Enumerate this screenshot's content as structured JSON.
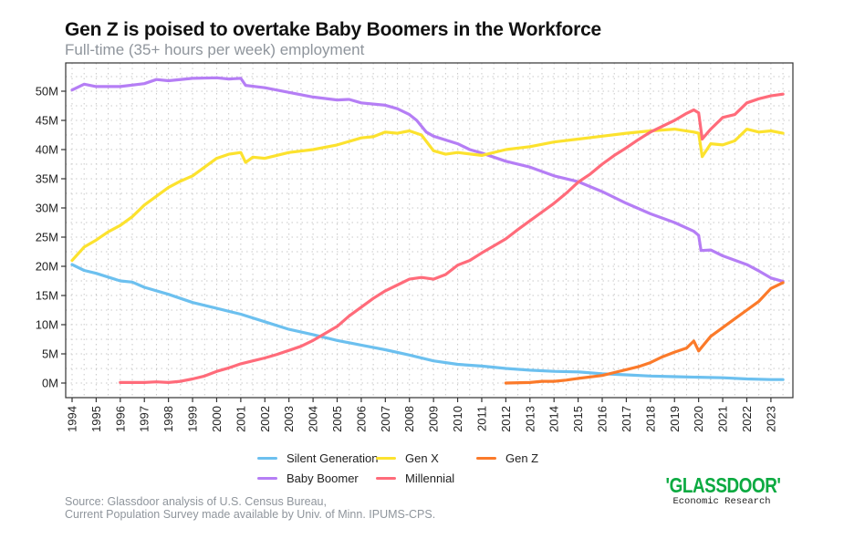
{
  "chart_data": {
    "type": "line",
    "title": "Gen Z is poised to overtake Baby Boomers in the Workforce",
    "subtitle": "Full-time (35+ hours per week) employment",
    "xlabel": "",
    "ylabel": "",
    "xlim": [
      1993.7,
      2023.9
    ],
    "ylim": [
      -2.5,
      52.5
    ],
    "grid": true,
    "legend_position": "bottom",
    "x_ticks": [
      "1994",
      "1995",
      "1996",
      "1997",
      "1998",
      "1999",
      "2000",
      "2001",
      "2002",
      "2003",
      "2004",
      "2005",
      "2006",
      "2007",
      "2008",
      "2009",
      "2010",
      "2011",
      "2012",
      "2013",
      "2014",
      "2015",
      "2016",
      "2017",
      "2018",
      "2019",
      "2020",
      "2021",
      "2022",
      "2023"
    ],
    "y_ticks": [
      {
        "value": 0,
        "label": "0M"
      },
      {
        "value": 5,
        "label": "5M"
      },
      {
        "value": 10,
        "label": "10M"
      },
      {
        "value": 15,
        "label": "15M"
      },
      {
        "value": 20,
        "label": "20M"
      },
      {
        "value": 25,
        "label": "25M"
      },
      {
        "value": 30,
        "label": "30M"
      },
      {
        "value": 35,
        "label": "35M"
      },
      {
        "value": 40,
        "label": "40M"
      },
      {
        "value": 45,
        "label": "45M"
      },
      {
        "value": 50,
        "label": "50M"
      }
    ],
    "units": "millions of workers",
    "series": [
      {
        "name": "Silent Generation",
        "color": "#6cc0ef",
        "x": [
          1994,
          1994.5,
          1995,
          1996,
          1996.5,
          1997,
          1998,
          1999,
          2000,
          2001,
          2002,
          2003,
          2004,
          2005,
          2006,
          2007,
          2008,
          2009,
          2010,
          2011,
          2012,
          2013,
          2014,
          2015,
          2016,
          2017,
          2018,
          2019,
          2020,
          2021,
          2022,
          2023,
          2023.5
        ],
        "y": [
          20.3,
          19.3,
          18.8,
          17.5,
          17.3,
          16.4,
          15.2,
          13.8,
          12.8,
          11.8,
          10.5,
          9.2,
          8.3,
          7.3,
          6.5,
          5.7,
          4.8,
          3.8,
          3.2,
          2.9,
          2.5,
          2.2,
          2.0,
          1.9,
          1.6,
          1.4,
          1.2,
          1.1,
          1.0,
          0.9,
          0.7,
          0.6,
          0.6
        ]
      },
      {
        "name": "Baby Boomer",
        "color": "#b57ef5",
        "x": [
          1994,
          1994.5,
          1995,
          1996,
          1997,
          1997.5,
          1998,
          1999,
          2000,
          2000.5,
          2001,
          2001.2,
          2002,
          2003,
          2004,
          2005,
          2005.5,
          2006,
          2007,
          2007.5,
          2008,
          2008.3,
          2008.7,
          2009,
          2010,
          2010.5,
          2011,
          2012,
          2013,
          2014,
          2015,
          2016,
          2017,
          2018,
          2019,
          2019.8,
          2020,
          2020.1,
          2020.5,
          2021,
          2022,
          2022.5,
          2023,
          2023.5
        ],
        "y": [
          50.2,
          51.2,
          50.8,
          50.8,
          51.3,
          52.0,
          51.8,
          52.2,
          52.3,
          52.1,
          52.2,
          51.0,
          50.6,
          49.8,
          49.0,
          48.5,
          48.6,
          48.0,
          47.6,
          47.0,
          46.0,
          45.0,
          43.0,
          42.3,
          41.0,
          40.0,
          39.4,
          38.0,
          37.0,
          35.5,
          34.5,
          32.8,
          30.8,
          29.0,
          27.5,
          26.0,
          25.3,
          22.7,
          22.8,
          21.8,
          20.3,
          19.2,
          18.0,
          17.4
        ]
      },
      {
        "name": "Gen X",
        "color": "#fce22e",
        "x": [
          1994,
          1994.5,
          1995,
          1995.5,
          1996,
          1996.5,
          1997,
          1997.5,
          1998,
          1998.5,
          1999,
          1999.5,
          2000,
          2000.5,
          2001,
          2001.2,
          2001.5,
          2002,
          2003,
          2004,
          2005,
          2006,
          2006.5,
          2007,
          2007.5,
          2008,
          2008.5,
          2009,
          2009.5,
          2010,
          2011,
          2012,
          2013,
          2014,
          2015,
          2016,
          2017,
          2018,
          2019,
          2019.8,
          2020,
          2020.15,
          2020.5,
          2021,
          2021.5,
          2022,
          2022.5,
          2023,
          2023.5
        ],
        "y": [
          21.0,
          23.3,
          24.5,
          25.9,
          27.0,
          28.5,
          30.5,
          32.0,
          33.5,
          34.6,
          35.5,
          37.0,
          38.5,
          39.2,
          39.5,
          37.8,
          38.7,
          38.5,
          39.5,
          40.0,
          40.8,
          42.0,
          42.2,
          43.0,
          42.8,
          43.2,
          42.5,
          39.8,
          39.2,
          39.5,
          39.0,
          40.0,
          40.5,
          41.3,
          41.8,
          42.3,
          42.8,
          43.2,
          43.5,
          43.0,
          42.8,
          38.8,
          41.0,
          40.8,
          41.5,
          43.5,
          43.0,
          43.2,
          42.8
        ]
      },
      {
        "name": "Millennial",
        "color": "#ff6b7a",
        "x": [
          1996,
          1996.5,
          1997,
          1997.5,
          1998,
          1998.5,
          1999,
          1999.5,
          2000,
          2000.5,
          2001,
          2001.5,
          2002,
          2002.5,
          2003,
          2003.5,
          2004,
          2004.5,
          2005,
          2005.5,
          2006,
          2006.5,
          2007,
          2007.5,
          2008,
          2008.5,
          2009,
          2009.5,
          2010,
          2010.5,
          2011,
          2011.5,
          2012,
          2012.5,
          2013,
          2013.5,
          2014,
          2014.5,
          2015,
          2015.5,
          2016,
          2016.5,
          2017,
          2017.5,
          2018,
          2018.5,
          2019,
          2019.5,
          2019.8,
          2020,
          2020.15,
          2020.5,
          2021,
          2021.5,
          2022,
          2022.5,
          2023,
          2023.5
        ],
        "y": [
          0.1,
          0.1,
          0.1,
          0.2,
          0.1,
          0.3,
          0.7,
          1.2,
          2.0,
          2.6,
          3.3,
          3.8,
          4.3,
          4.9,
          5.6,
          6.3,
          7.3,
          8.5,
          9.7,
          11.5,
          13.0,
          14.5,
          15.8,
          16.8,
          17.8,
          18.1,
          17.8,
          18.6,
          20.2,
          21.0,
          22.3,
          23.5,
          24.7,
          26.3,
          27.8,
          29.3,
          30.8,
          32.5,
          34.4,
          35.8,
          37.5,
          39.0,
          40.3,
          41.7,
          43.0,
          44.0,
          45.0,
          46.2,
          46.8,
          46.3,
          41.8,
          43.5,
          45.5,
          46.0,
          48.0,
          48.7,
          49.2,
          49.5
        ]
      },
      {
        "name": "Gen Z",
        "color": "#fb7a2a",
        "x": [
          2012,
          2013,
          2013.5,
          2014,
          2014.5,
          2015,
          2016,
          2016.5,
          2017,
          2017.5,
          2018,
          2018.5,
          2019,
          2019.5,
          2019.8,
          2020,
          2020.5,
          2021,
          2021.5,
          2022,
          2022.5,
          2023,
          2023.5
        ],
        "y": [
          0.0,
          0.1,
          0.3,
          0.3,
          0.5,
          0.8,
          1.3,
          1.8,
          2.3,
          2.8,
          3.5,
          4.5,
          5.3,
          6.0,
          7.2,
          5.5,
          8.0,
          9.5,
          11.0,
          12.5,
          14.0,
          16.2,
          17.2
        ]
      }
    ],
    "legend": [
      "Silent Generation",
      "Gen X",
      "Gen Z",
      "Baby Boomer",
      "Millennial"
    ]
  },
  "source": {
    "line1": "Source: Glassdoor analysis of U.S. Census Bureau,",
    "line2": "Current Population Survey made available by Univ. of Minn. IPUMS-CPS."
  },
  "logo": {
    "name": "'GLASSDOOR'",
    "subtitle": "Economic Research",
    "color": "#0caa41"
  }
}
